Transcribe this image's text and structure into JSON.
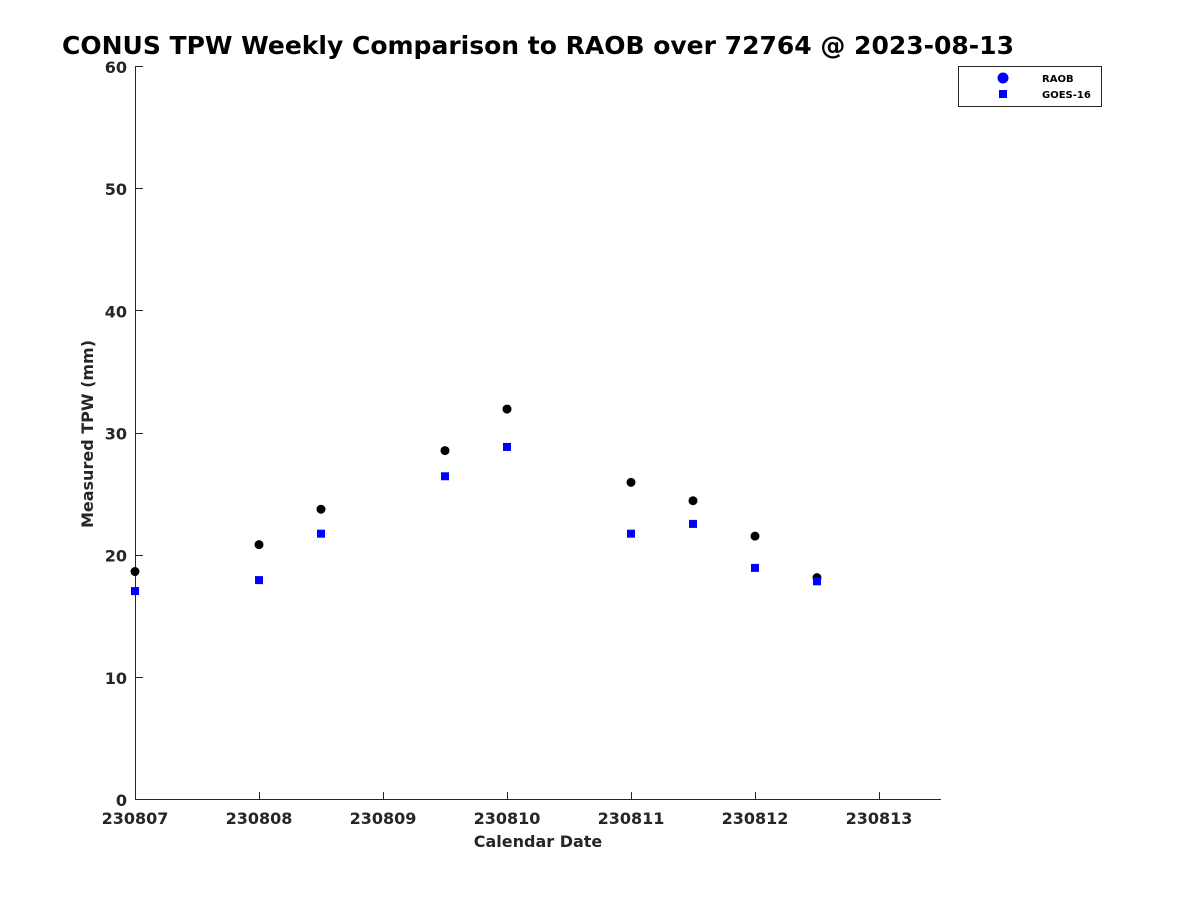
{
  "chart_data": {
    "type": "scatter",
    "title": "CONUS TPW Weekly Comparison to RAOB over 72764 @ 2023-08-13",
    "xlabel": "Calendar Date",
    "ylabel": "Measured TPW (mm)",
    "xlim": [
      0,
      6.5
    ],
    "ylim": [
      0,
      60
    ],
    "x_tick_values": [
      0,
      1,
      2,
      3,
      4,
      5,
      6
    ],
    "x_tick_labels": [
      "230807",
      "230808",
      "230809",
      "230810",
      "230811",
      "230812",
      "230813"
    ],
    "y_ticks": [
      0,
      10,
      20,
      30,
      40,
      50,
      60
    ],
    "grid": false,
    "legend_position": "top-right",
    "series": [
      {
        "name": "RAOB",
        "marker": "circle",
        "color": "#000000",
        "x": [
          0,
          1,
          1.5,
          2.5,
          3,
          4,
          4.5,
          5,
          5.5
        ],
        "y": [
          18.7,
          20.9,
          23.8,
          28.6,
          32.0,
          26.0,
          24.5,
          21.6,
          18.2
        ]
      },
      {
        "name": "GOES-16",
        "marker": "square",
        "color": "#0000ff",
        "x": [
          0,
          1,
          1.5,
          2.5,
          3,
          4,
          4.5,
          5,
          5.5
        ],
        "y": [
          17.1,
          18.0,
          21.8,
          26.5,
          28.9,
          21.8,
          22.6,
          19.0,
          17.9
        ]
      }
    ]
  }
}
